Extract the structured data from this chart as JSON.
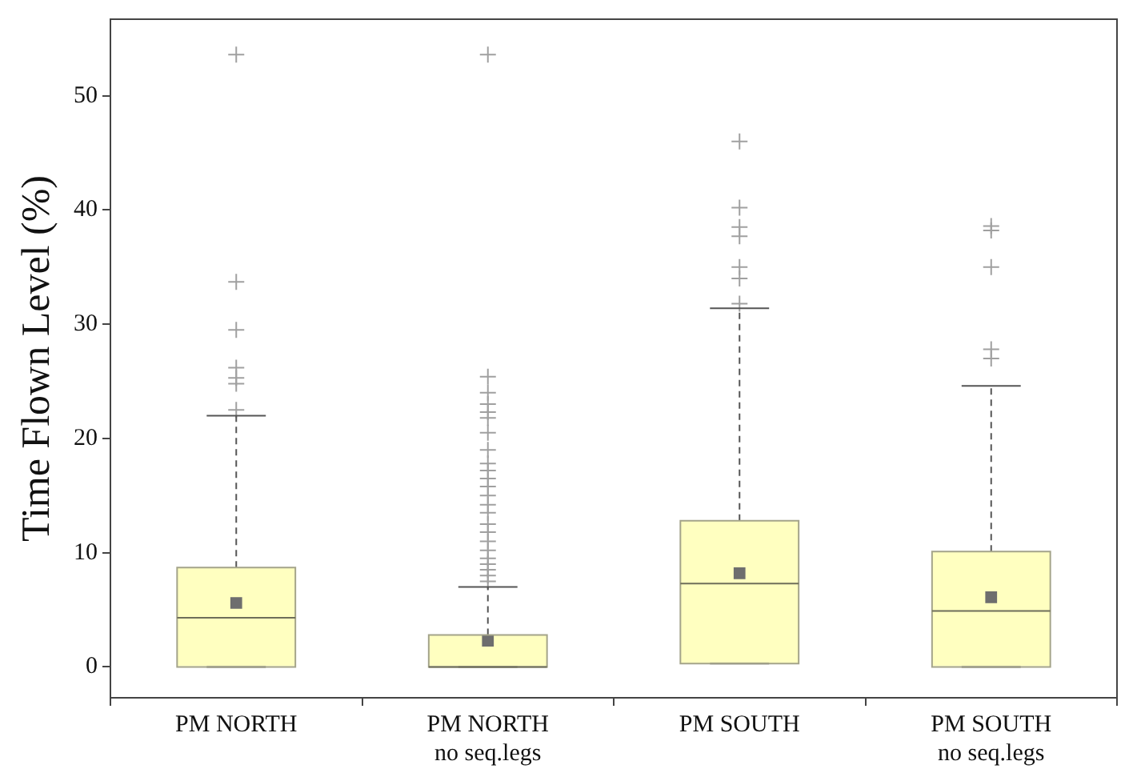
{
  "chart_data": {
    "type": "box",
    "ylabel": "Time Flown Level (%)",
    "categories": [
      "PM NORTH",
      "PM NORTH\nno seq.legs",
      "PM SOUTH",
      "PM SOUTH\nno seq.legs"
    ],
    "color": "#ffffc0",
    "ylim": [
      -2.7,
      56.7
    ],
    "yticks": [
      0,
      10,
      20,
      30,
      40,
      50
    ],
    "grid": false,
    "legend": false,
    "marker": "cross",
    "boxes": [
      {
        "low": 0,
        "q1": 0,
        "median": 4.3,
        "q3": 8.7,
        "high": 22.0,
        "mean": 5.6,
        "outliers": [
          22.5,
          24.8,
          25.3,
          26.2,
          29.5,
          33.7,
          53.6
        ]
      },
      {
        "low": 0,
        "q1": 0,
        "median": 0,
        "q3": 2.8,
        "high": 7.0,
        "mean": 2.3,
        "outliers": [
          7.5,
          8.0,
          8.5,
          9.0,
          9.5,
          10.2,
          11.0,
          11.8,
          12.5,
          13.5,
          14.2,
          15.0,
          15.8,
          16.5,
          17.2,
          17.8,
          19.0,
          20.5,
          21.8,
          22.3,
          23.0,
          24.0,
          25.4,
          53.6
        ]
      },
      {
        "low": 0.3,
        "q1": 0.3,
        "median": 7.3,
        "q3": 12.8,
        "high": 31.4,
        "mean": 8.2,
        "outliers": [
          31.8,
          34.0,
          35.0,
          37.7,
          38.5,
          40.2,
          46.0
        ]
      },
      {
        "low": 0,
        "q1": 0,
        "median": 4.9,
        "q3": 10.1,
        "high": 24.6,
        "mean": 6.1,
        "outliers": [
          27.0,
          27.8,
          35.0,
          38.2,
          38.6
        ]
      }
    ]
  }
}
